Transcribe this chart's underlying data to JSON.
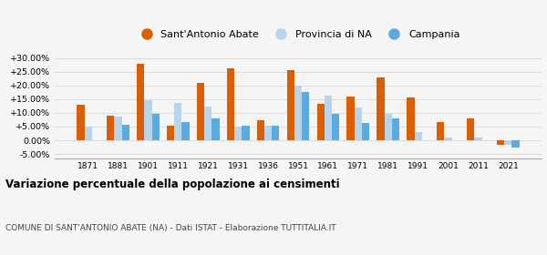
{
  "years": [
    1871,
    1881,
    1901,
    1911,
    1921,
    1931,
    1936,
    1951,
    1961,
    1971,
    1981,
    1991,
    2001,
    2011,
    2021
  ],
  "sant_antonio": [
    13.0,
    8.8,
    28.0,
    5.2,
    21.0,
    26.3,
    7.3,
    25.7,
    13.3,
    15.8,
    22.8,
    15.7,
    6.7,
    7.8,
    -1.8
  ],
  "provincia_na": [
    4.9,
    8.7,
    14.7,
    13.6,
    12.3,
    4.9,
    5.4,
    20.0,
    16.3,
    11.8,
    9.7,
    3.1,
    1.1,
    1.0,
    -1.5
  ],
  "campania": [
    0.0,
    5.5,
    9.7,
    6.5,
    7.9,
    5.2,
    5.2,
    17.6,
    9.5,
    6.3,
    8.0,
    0.0,
    0.0,
    0.0,
    -2.5
  ],
  "color_sant": "#d95f02",
  "color_prov": "#b8d4ea",
  "color_camp": "#5aace0",
  "ylim_min": -6.5,
  "ylim_max": 32.5,
  "yticks": [
    -5.0,
    0.0,
    5.0,
    10.0,
    15.0,
    20.0,
    25.0,
    30.0
  ],
  "title": "Variazione percentuale della popolazione ai censimenti",
  "subtitle": "COMUNE DI SANT'ANTONIO ABATE (NA) - Dati ISTAT - Elaborazione TUTTITALIA.IT",
  "legend_labels": [
    "Sant'Antonio Abate",
    "Provincia di NA",
    "Campania"
  ],
  "bg_color": "#f5f5f5",
  "bar_width": 0.25
}
